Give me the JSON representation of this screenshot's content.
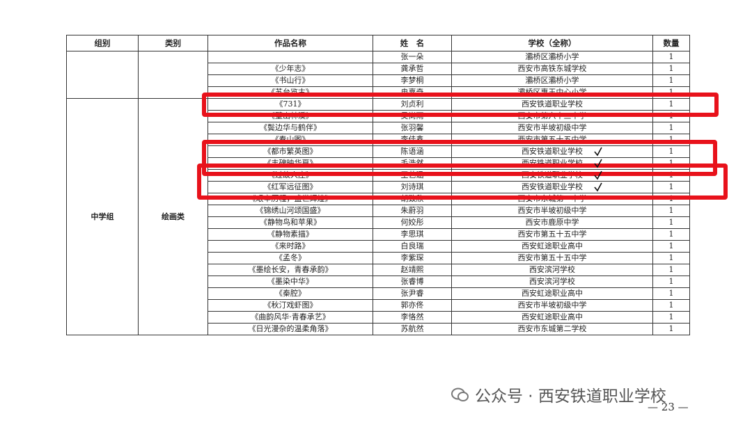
{
  "table": {
    "headers": [
      "组别",
      "类别",
      "作品名称",
      "姓　名",
      "学校（全称）",
      "数量"
    ],
    "top_rows": [
      {
        "name": "张一朵",
        "school": "灞桥区灞桥小学",
        "count": 1
      },
      {
        "work": "《少年志》",
        "name": "龚承哲",
        "school": "西安市高铁东城学校",
        "count": 1
      },
      {
        "work": "《书山行》",
        "name": "李梦桐",
        "school": "灞桥区灞桥小学",
        "count": 1
      },
      {
        "work": "《苏台览古》",
        "name": "冉嘉奇",
        "school": "灞桥区惠王中心小学",
        "count": 1
      }
    ],
    "section": {
      "group": "中学组",
      "category": "绘画类",
      "rows": [
        {
          "work": "《731》",
          "name": "刘贞利",
          "school": "西安铁道职业学校",
          "count": 1
        },
        {
          "work": "《壁山林溪》",
          "name": "吴尚雨",
          "school": "西安市第六十三中学",
          "count": 1
        },
        {
          "work": "《鬓边华与鹤伴》",
          "name": "张羽馨",
          "school": "西安市半坡初级中学",
          "count": 1
        },
        {
          "work": "《春山图》",
          "name": "李佳鑫",
          "school": "西安市第五十五中学",
          "count": 1
        },
        {
          "work": "《都市繁英图》",
          "name": "陈语涵",
          "school": "西安铁道职业学校",
          "count": 1
        },
        {
          "work": "《丰碑映华夏》",
          "name": "毛浩然",
          "school": "西安铁道职业学校",
          "count": 1
        },
        {
          "work": "《过故人庄》",
          "name": "王艺涵",
          "school": "西安铁道职业学校",
          "count": 1
        },
        {
          "work": "《红军远征图》",
          "name": "刘诗琪",
          "school": "西安铁道职业学校",
          "count": 1
        },
        {
          "work": "《艰辛历程，盛世辉煌》",
          "name": "胡致欣",
          "school": "西安市东城第一中学",
          "count": 1
        },
        {
          "work": "《锦绣山河颂国盛》",
          "name": "朱蔚羽",
          "school": "西安市半坡初级中学",
          "count": 1
        },
        {
          "work": "《静物鸟和苹果》",
          "name": "何姣彤",
          "school": "西安市鹿原中学",
          "count": 1
        },
        {
          "work": "《静物素描》",
          "name": "李思琪",
          "school": "西安市第五十五中学",
          "count": 1
        },
        {
          "work": "《来时路》",
          "name": "白良瑞",
          "school": "西安虹途职业高中",
          "count": 1
        },
        {
          "work": "《孟冬》",
          "name": "李紫琛",
          "school": "西安市第五十五中学",
          "count": 1
        },
        {
          "work": "《墨绘长安，青春承韵》",
          "name": "赵靖熙",
          "school": "西安滨河学校",
          "count": 1
        },
        {
          "work": "《墨染中华》",
          "name": "张睿博",
          "school": "西安滨河学校",
          "count": 1
        },
        {
          "work": "《秦腔》",
          "name": "张尹睿",
          "school": "西安虹途职业高中",
          "count": 1
        },
        {
          "work": "《秋汀戏虾图》",
          "name": "郭亦佟",
          "school": "西安市半坡初级中学",
          "count": 1
        },
        {
          "work": "《曲韵风华·青春承艺》",
          "name": "李恪然",
          "school": "西安虹途职业高中",
          "count": 1
        },
        {
          "work": "《日光漫杂的温柔角落》",
          "name": "苏航然",
          "school": "西安市东城第二学校",
          "count": 1
        }
      ]
    }
  },
  "footer": {
    "watermark": "公众号 · 西安铁道职业学校",
    "page_number": 23
  }
}
